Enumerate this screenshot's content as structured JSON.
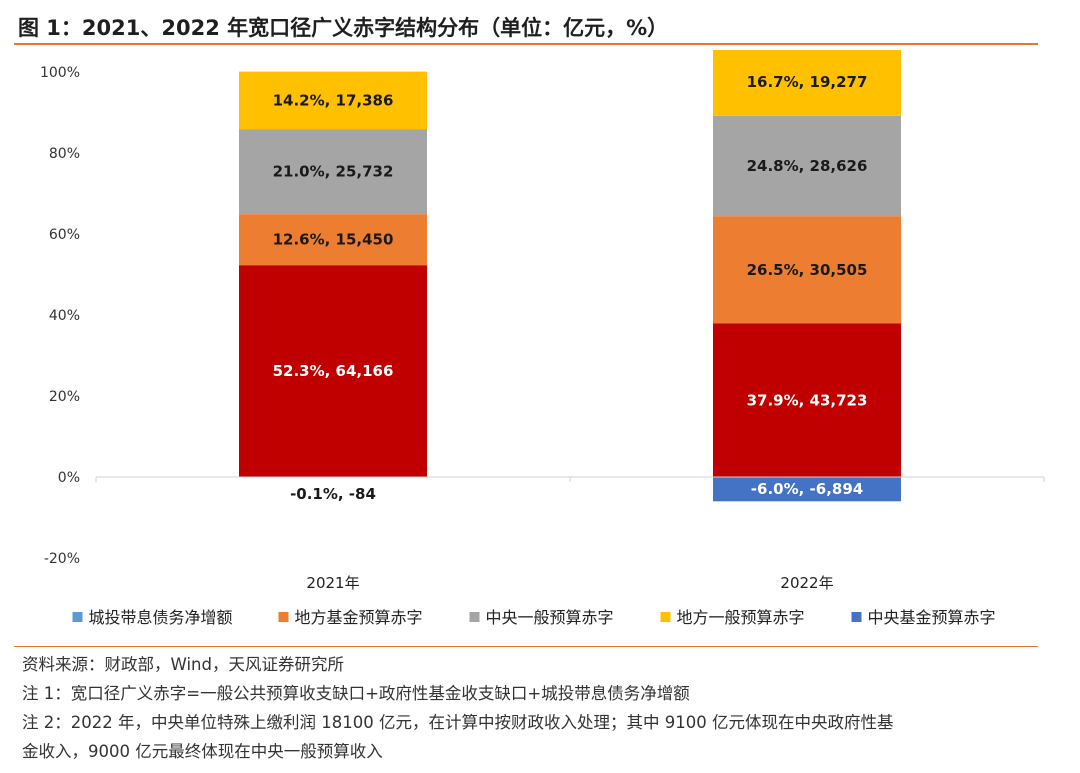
{
  "title": "图 1：2021、2022 年宽口径广义赤字结构分布（单位：亿元，%）",
  "notes": {
    "source": "资料来源：财政部，Wind，天风证券研究所",
    "note1": "注 1：宽口径广义赤字=一般公共预算收支缺口+政府性基金收支缺口+城投带息债务净增额",
    "note2_line1": "注 2：2022 年，中央单位特殊上缴利润 18100 亿元，在计算中按财政收入处理；其中 9100 亿元体现在中央政府性基",
    "note2_line2": "金收入，9000 亿元最终体现在中央一般预算收入"
  },
  "chart_data": {
    "type": "bar",
    "stacked": true,
    "categories": [
      "2021年",
      "2022年"
    ],
    "ylim": [
      -0.2,
      1.0
    ],
    "yticks": [
      -0.2,
      0,
      0.2,
      0.4,
      0.6,
      0.8,
      1.0
    ],
    "ytick_labels": [
      "-20%",
      "0%",
      "20%",
      "40%",
      "60%",
      "80%",
      "100%"
    ],
    "legend_position": "bottom",
    "series": [
      {
        "name": "城投带息债务净增额",
        "color": "#5b9bd5",
        "values": [
          0.523,
          0.379
        ],
        "labels": [
          "52.3%, 64,166",
          "37.9%, 43,723"
        ],
        "bar_color": "#c00000",
        "label_color": "#ffffff"
      },
      {
        "name": "地方基金预算赤字",
        "color": "#ed7d31",
        "values": [
          0.126,
          0.265
        ],
        "labels": [
          "12.6%, 15,450",
          "26.5%, 30,505"
        ],
        "label_color": "#1a1a1a"
      },
      {
        "name": "中央一般预算赤字",
        "color": "#a5a5a5",
        "values": [
          0.21,
          0.248
        ],
        "labels": [
          "21.0%, 25,732",
          "24.8%, 28,626"
        ],
        "label_color": "#1a1a1a"
      },
      {
        "name": "地方一般预算赤字",
        "color": "#ffc000",
        "values": [
          0.142,
          0.167
        ],
        "labels": [
          "14.2%, 17,386",
          "16.7%, 19,277"
        ],
        "label_color": "#1a1a1a"
      },
      {
        "name": "中央基金预算赤字",
        "color": "#4472c4",
        "values": [
          -0.001,
          -0.06
        ],
        "labels": [
          "-0.1%, -84",
          "-6.0%, -6,894"
        ],
        "label_color_inside": "#ffffff",
        "label_color_outside": "#1a1a1a"
      }
    ]
  }
}
